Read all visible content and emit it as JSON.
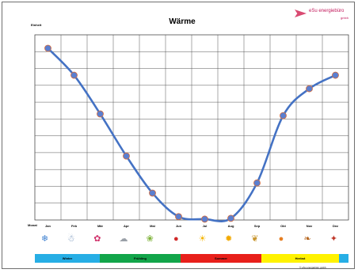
{
  "header": {
    "title": "Wärme",
    "unit_label": "Einheit",
    "logo_name": "eSu energiebüro",
    "logo_sub": "gmbh"
  },
  "footer": {
    "month_axis_label": "Monat",
    "copyright": "© eSu energiebüro gmbh"
  },
  "colors": {
    "line": "#4472c4",
    "marker_fill": "#5b7fd0",
    "marker_outline": "#d46a3a",
    "winter": "#27aee5",
    "fruehling": "#12a54a",
    "sommer": "#e8201b",
    "herbst": "#fff200"
  },
  "seasons": [
    {
      "label": "Winter",
      "color": "#27aee5"
    },
    {
      "label": "Frühling",
      "color": "#12a54a"
    },
    {
      "label": "Sommer",
      "color": "#e8201b"
    },
    {
      "label": "Herbst",
      "color": "#fff200"
    },
    {
      "label": "",
      "color": "#27aee5"
    }
  ],
  "decorations": [
    {
      "icon": "snowflake-icon",
      "glyph": "❄",
      "color": "#3b7fd0"
    },
    {
      "icon": "snowman-icon",
      "glyph": "☃",
      "color": "#6a8bb5"
    },
    {
      "icon": "tulips-icon",
      "glyph": "✿",
      "color": "#d0306a"
    },
    {
      "icon": "lamb-icon",
      "glyph": "☁",
      "color": "#9aa0a8"
    },
    {
      "icon": "meadow-icon",
      "glyph": "❀",
      "color": "#7fb33a"
    },
    {
      "icon": "ladybug-icon",
      "glyph": "●",
      "color": "#d12a2a"
    },
    {
      "icon": "beach-icon",
      "glyph": "☀",
      "color": "#f4b400"
    },
    {
      "icon": "sunflower-icon",
      "glyph": "✹",
      "color": "#f2a900"
    },
    {
      "icon": "wheat-icon",
      "glyph": "❦",
      "color": "#c8962e"
    },
    {
      "icon": "pumpkin-icon",
      "glyph": "●",
      "color": "#e67e22"
    },
    {
      "icon": "autumn-leaves-icon",
      "glyph": "❧",
      "color": "#b5651d"
    },
    {
      "icon": "christmas-icon",
      "glyph": "✦",
      "color": "#c0392b"
    }
  ],
  "chart_data": {
    "type": "line",
    "title": "Wärme",
    "ylabel": "Einheit",
    "xlabel": "Monat",
    "categories": [
      "Jan",
      "Feb",
      "Mär",
      "Apr",
      "Mai",
      "Jun",
      "Jul",
      "Aug",
      "Sep",
      "Okt",
      "Nov",
      "Dez"
    ],
    "series": [
      {
        "values": [
          10.2,
          8.6,
          6.3,
          3.8,
          1.6,
          0.2,
          0.05,
          0.1,
          2.2,
          6.2,
          7.8,
          8.6
        ]
      }
    ],
    "ylim": [
      0,
      11
    ],
    "grid": true,
    "smooth": true,
    "markers": true
  }
}
